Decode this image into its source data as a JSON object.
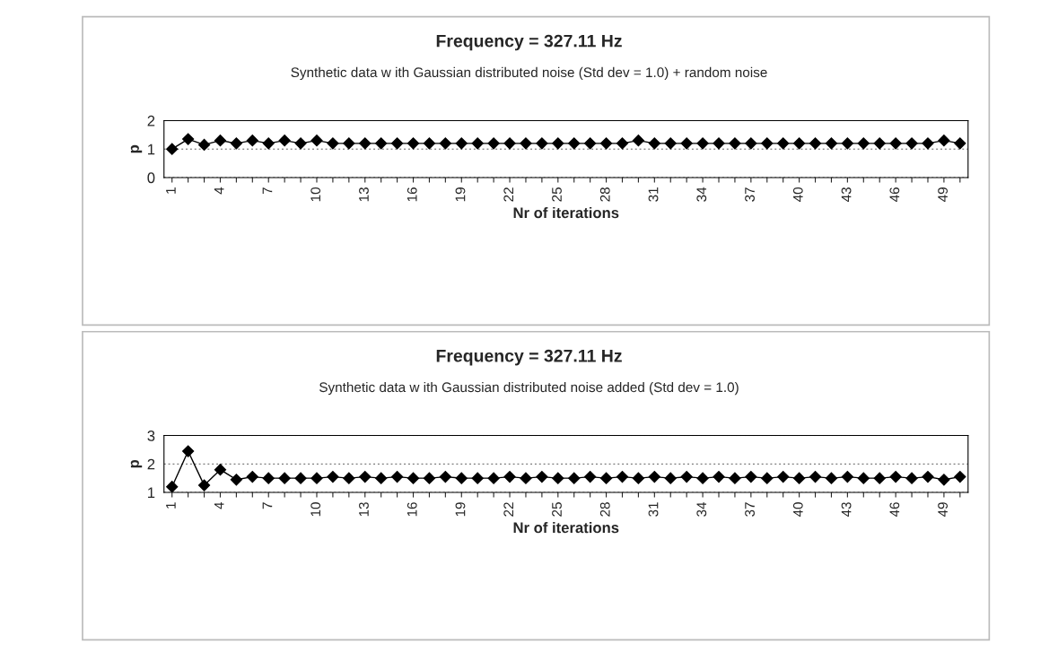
{
  "chart_data": [
    {
      "type": "line",
      "title": "Frequency = 327.11 Hz",
      "subtitle": "Synthetic data w ith Gaussian distributed noise (Std dev = 1.0) + random noise",
      "xlabel": "Nr of iterations",
      "ylabel": "p",
      "categories": [
        "1",
        null,
        null,
        "4",
        null,
        null,
        "7",
        null,
        null,
        "10",
        null,
        null,
        "13",
        null,
        null,
        "16",
        null,
        null,
        "19",
        null,
        null,
        "22",
        null,
        null,
        "25",
        null,
        null,
        "28",
        null,
        null,
        "31",
        null,
        null,
        "34",
        null,
        null,
        "37",
        null,
        null,
        "40",
        null,
        null,
        "43",
        null,
        null,
        "46",
        null,
        null,
        "49",
        null
      ],
      "series": [
        {
          "color": "#000000",
          "values": [
            1.0,
            1.35,
            1.15,
            1.3,
            1.2,
            1.3,
            1.2,
            1.3,
            1.2,
            1.3,
            1.2,
            1.2,
            1.2,
            1.2,
            1.2,
            1.2,
            1.2,
            1.2,
            1.2,
            1.2,
            1.2,
            1.2,
            1.2,
            1.2,
            1.2,
            1.2,
            1.2,
            1.2,
            1.2,
            1.3,
            1.2,
            1.2,
            1.2,
            1.2,
            1.2,
            1.2,
            1.2,
            1.2,
            1.2,
            1.2,
            1.2,
            1.2,
            1.2,
            1.2,
            1.2,
            1.2,
            1.2,
            1.2,
            1.3,
            1.2
          ]
        }
      ],
      "ylim": [
        0,
        2
      ],
      "yticks": [
        0,
        1,
        2
      ],
      "grid": "y",
      "marker": "diamond",
      "line_style": "solid",
      "legend": false
    },
    {
      "type": "line",
      "title": "Frequency = 327.11 Hz",
      "subtitle": "Synthetic data w ith Gaussian distributed noise added (Std dev = 1.0)",
      "xlabel": "Nr of iterations",
      "ylabel": "p",
      "categories": [
        "1",
        null,
        null,
        "4",
        null,
        null,
        "7",
        null,
        null,
        "10",
        null,
        null,
        "13",
        null,
        null,
        "16",
        null,
        null,
        "19",
        null,
        null,
        "22",
        null,
        null,
        "25",
        null,
        null,
        "28",
        null,
        null,
        "31",
        null,
        null,
        "34",
        null,
        null,
        "37",
        null,
        null,
        "40",
        null,
        null,
        "43",
        null,
        null,
        "46",
        null,
        null,
        "49",
        null
      ],
      "series": [
        {
          "color": "#000000",
          "values": [
            1.2,
            2.45,
            1.25,
            1.8,
            1.45,
            1.55,
            1.5,
            1.5,
            1.5,
            1.5,
            1.55,
            1.5,
            1.55,
            1.5,
            1.55,
            1.5,
            1.5,
            1.55,
            1.5,
            1.5,
            1.5,
            1.55,
            1.5,
            1.55,
            1.5,
            1.5,
            1.55,
            1.5,
            1.55,
            1.5,
            1.55,
            1.5,
            1.55,
            1.5,
            1.55,
            1.5,
            1.55,
            1.5,
            1.55,
            1.5,
            1.55,
            1.5,
            1.55,
            1.5,
            1.5,
            1.55,
            1.5,
            1.55,
            1.45,
            1.55
          ]
        }
      ],
      "ylim": [
        1,
        3
      ],
      "yticks": [
        1,
        2,
        3
      ],
      "grid": "y",
      "marker": "diamond",
      "line_style": "solid",
      "legend": false
    }
  ]
}
